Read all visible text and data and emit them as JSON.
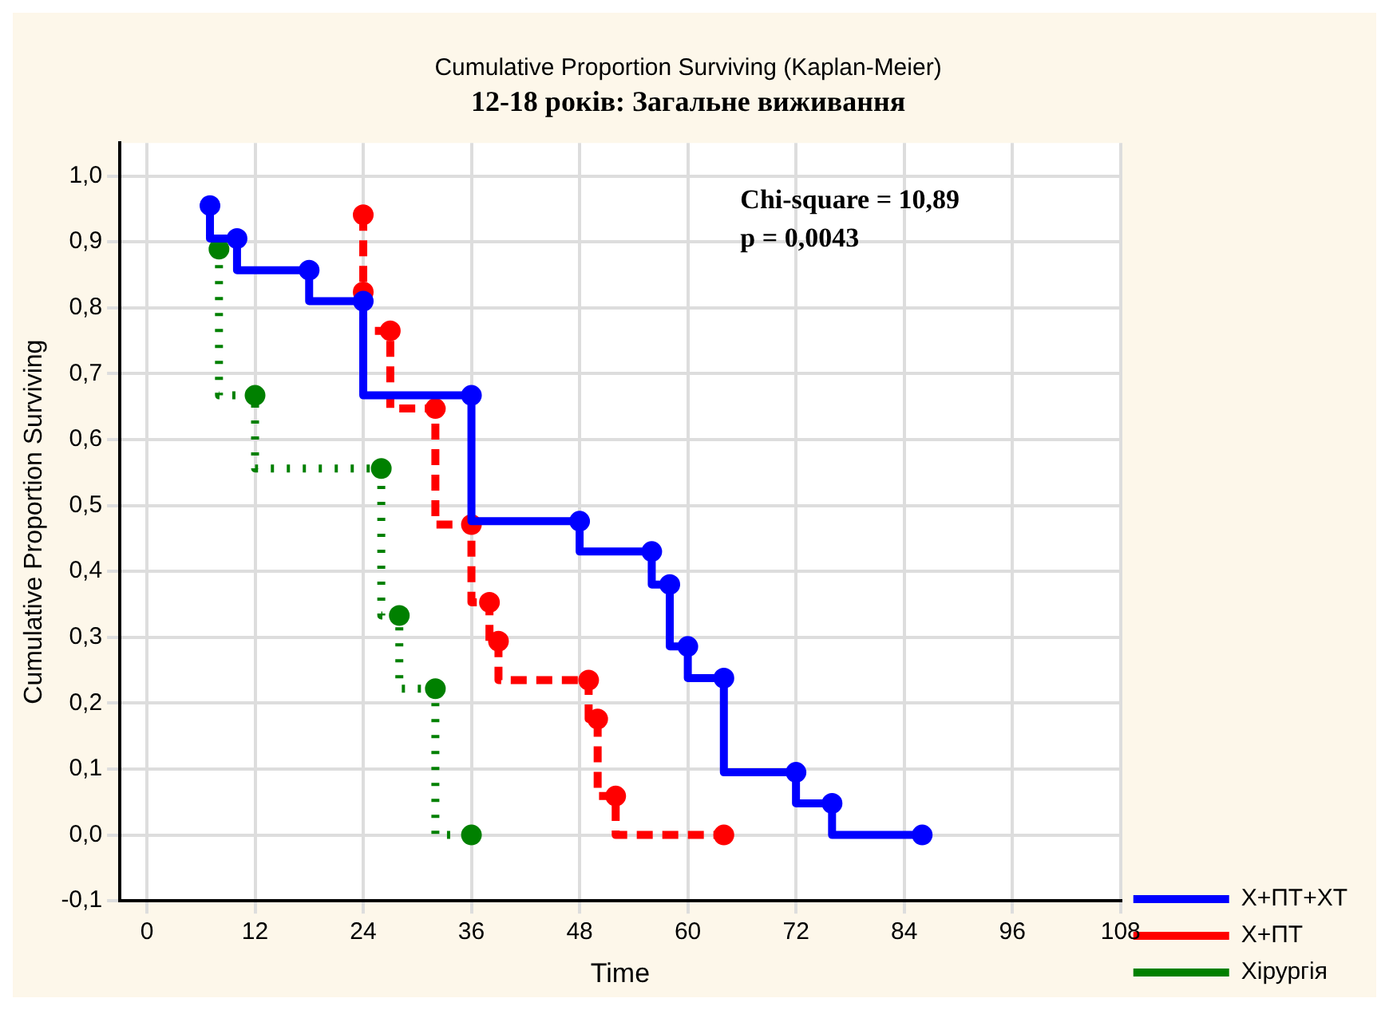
{
  "chart_data": {
    "type": "step",
    "title": "Cumulative Proportion Surviving (Kaplan-Meier)",
    "subtitle": "12-18 років: Загальне виживання",
    "xlabel": "Time",
    "ylabel": "Cumulative Proportion Surviving",
    "series": [
      {
        "name": "Х+ПТ+ХТ",
        "color": "#0000ff",
        "line_style": "solid",
        "x": [
          7,
          10,
          18,
          24,
          36,
          48,
          56,
          58,
          60,
          64,
          72,
          76,
          86
        ],
        "values": [
          0.955,
          0.905,
          0.857,
          0.81,
          0.667,
          0.476,
          0.43,
          0.38,
          0.286,
          0.238,
          0.095,
          0.048,
          0.0
        ]
      },
      {
        "name": "Х+ПТ",
        "color": "#ff0000",
        "line_style": "dashed",
        "x": [
          24,
          24,
          27,
          32,
          36,
          38,
          39,
          49,
          50,
          52,
          64
        ],
        "values": [
          0.941,
          0.824,
          0.765,
          0.647,
          0.471,
          0.353,
          0.294,
          0.235,
          0.176,
          0.059,
          0.0
        ]
      },
      {
        "name": "Хірургія",
        "color": "#008000",
        "line_style": "dotted",
        "x": [
          8,
          12,
          26,
          28,
          32,
          36
        ],
        "values": [
          0.889,
          0.667,
          0.556,
          0.333,
          0.222,
          0.0
        ]
      }
    ],
    "xlim": [
      -3,
      108
    ],
    "xticks": [
      0,
      12,
      24,
      36,
      48,
      60,
      72,
      84,
      96,
      108
    ],
    "ylim": [
      -0.1,
      1.05
    ],
    "yticks": [
      {
        "value": -0.1,
        "label": "-0,1"
      },
      {
        "value": 0,
        "label": "0,0"
      },
      {
        "value": 0.1,
        "label": "0,1"
      },
      {
        "value": 0.2,
        "label": "0,2"
      },
      {
        "value": 0.3,
        "label": "0,3"
      },
      {
        "value": 0.4,
        "label": "0,4"
      },
      {
        "value": 0.5,
        "label": "0,5"
      },
      {
        "value": 0.6,
        "label": "0,6"
      },
      {
        "value": 0.7,
        "label": "0,7"
      },
      {
        "value": 0.8,
        "label": "0,8"
      },
      {
        "value": 0.9,
        "label": "0,9"
      },
      {
        "value": 1,
        "label": "1,0"
      }
    ],
    "annotations": [
      "Chi-square = 10,89",
      "p = 0,0043"
    ],
    "grid": true,
    "legend": "bottom right",
    "marker": "circle"
  }
}
